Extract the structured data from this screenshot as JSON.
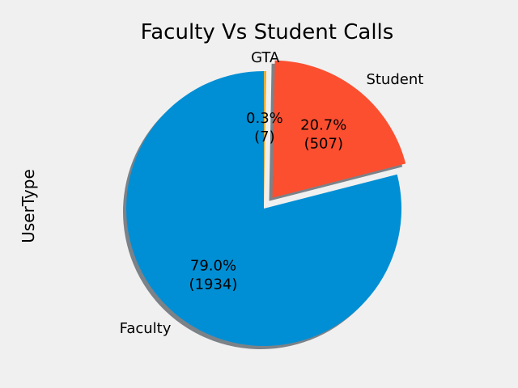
{
  "chart_data": {
    "type": "pie",
    "title": "Faculty Vs Student Calls",
    "ylabel": "UserType",
    "legend": "none",
    "shadow": true,
    "start_angle_deg": 90,
    "direction": "counterclockwise",
    "slices": [
      {
        "label": "Faculty",
        "value": 1934,
        "percent_label": "79.0%",
        "count_label": "(1934)",
        "color": "#008fd5",
        "explode": 0
      },
      {
        "label": "Student",
        "value": 507,
        "percent_label": "20.7%",
        "count_label": "(507)",
        "color": "#fc4f30",
        "explode": 0.1
      },
      {
        "label": "GTA",
        "value": 7,
        "percent_label": "0.3%",
        "count_label": "(7)",
        "color": "#e5ae38",
        "explode": 0
      }
    ]
  }
}
